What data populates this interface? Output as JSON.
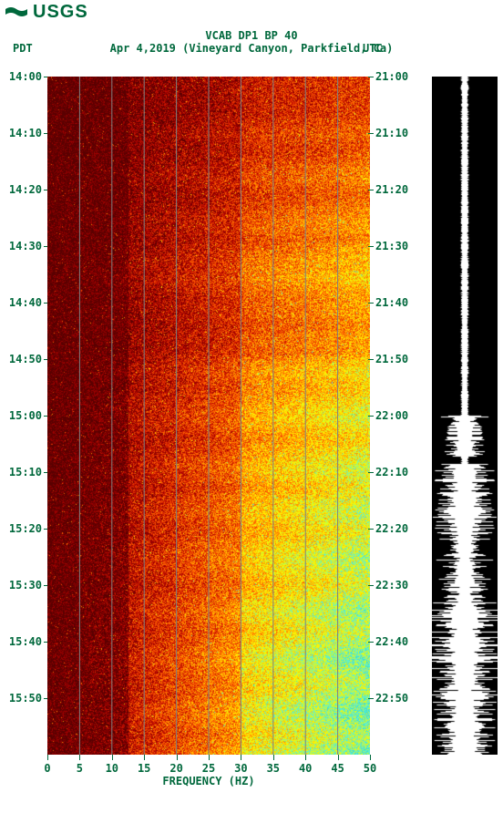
{
  "logo_text": "USGS",
  "title": "VCAB DP1 BP 40",
  "subtitle": "Apr 4,2019 (Vineyard Canyon, Parkfield, Ca)",
  "tz_left": "PDT",
  "tz_right": "UTC",
  "xlabel": "FREQUENCY (HZ)",
  "colors": {
    "accent": "#00683c",
    "background": "#ffffff",
    "waveform_bg": "#000000",
    "waveform_fg": "#ffffff",
    "grid": "#808080"
  },
  "spectrogram": {
    "type": "spectrogram",
    "x_min": 0,
    "x_max": 50,
    "x_ticks": [
      0,
      5,
      10,
      15,
      20,
      25,
      30,
      35,
      40,
      45,
      50
    ],
    "grid_x": [
      5,
      10,
      15,
      20,
      25,
      30,
      35,
      40,
      45
    ],
    "y_left_ticks": [
      "14:00",
      "14:10",
      "14:20",
      "14:30",
      "14:40",
      "14:50",
      "15:00",
      "15:10",
      "15:20",
      "15:30",
      "15:40",
      "15:50"
    ],
    "y_right_ticks": [
      "21:00",
      "21:10",
      "21:20",
      "21:30",
      "21:40",
      "21:50",
      "22:00",
      "22:10",
      "22:20",
      "22:30",
      "22:40",
      "22:50"
    ],
    "n_time_rows": 360,
    "n_freq_cols": 200,
    "palette": [
      "#5a0000",
      "#7a0000",
      "#a00000",
      "#c81400",
      "#e63a00",
      "#ff6400",
      "#ff9600",
      "#ffc800",
      "#fff000",
      "#d2ff28",
      "#90ee90",
      "#5af0d2",
      "#40e0d0"
    ],
    "intensity_profile": {
      "comment": "relative energy floor by freq band 0..1; increases with freq",
      "low_freq_floor": 0.05,
      "mid_freq_floor": 0.3,
      "high_freq_floor": 0.7
    },
    "time_energy_multiplier": [
      0.4,
      0.4,
      0.4,
      0.4,
      0.4,
      0.45,
      0.5,
      0.45,
      0.45,
      0.5,
      0.55,
      0.55,
      0.5,
      0.5,
      0.55,
      0.6,
      0.6,
      0.55,
      0.6,
      0.65,
      0.65,
      0.7,
      0.65,
      0.6,
      0.6,
      0.6,
      0.55,
      0.6,
      0.6,
      0.6,
      0.7,
      0.75,
      0.7,
      0.7,
      0.75,
      0.8,
      0.8,
      0.75,
      0.7,
      0.75,
      0.8,
      0.85,
      0.8,
      0.75,
      0.8,
      0.85,
      0.85,
      0.8,
      0.8,
      0.85,
      0.9,
      0.9,
      0.85,
      0.8,
      0.85,
      0.9,
      0.95,
      0.9,
      0.85,
      0.9,
      0.95,
      1.0,
      0.95,
      0.9,
      0.9,
      0.95,
      1.0,
      1.0,
      0.95,
      0.9,
      0.95,
      1.0
    ]
  },
  "waveform": {
    "type": "waveform",
    "n_samples": 744,
    "max_amplitude": 36,
    "base_amplitude": 2,
    "burst_regions": [
      {
        "start": 0.5,
        "end": 0.56,
        "amp": 0.5
      },
      {
        "start": 0.57,
        "end": 0.68,
        "amp": 0.7
      },
      {
        "start": 0.68,
        "end": 0.78,
        "amp": 0.55
      },
      {
        "start": 0.78,
        "end": 0.88,
        "amp": 0.9
      },
      {
        "start": 0.88,
        "end": 1.0,
        "amp": 0.8
      }
    ]
  }
}
